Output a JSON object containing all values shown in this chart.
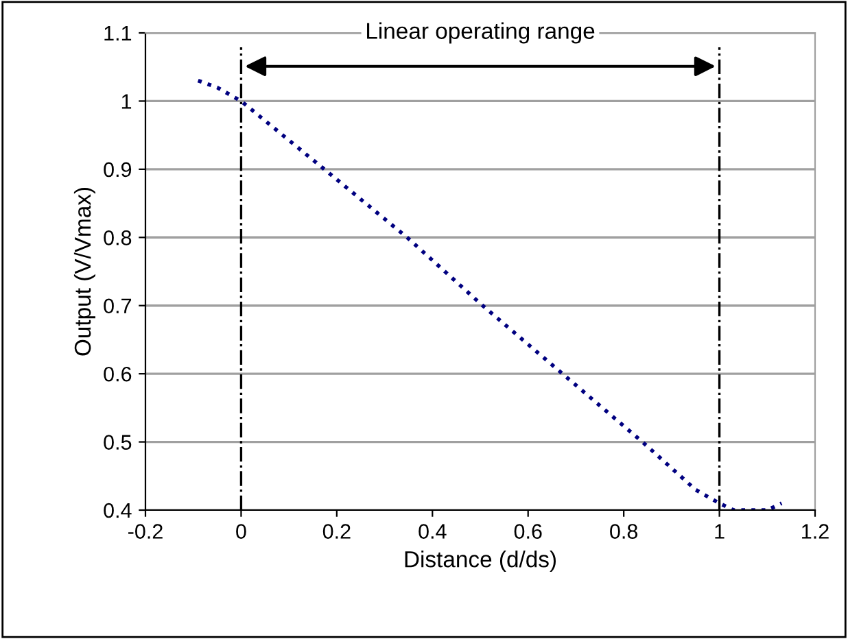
{
  "chart_data": {
    "type": "line",
    "xlabel": "Distance (d/ds)",
    "ylabel": "Output (V/Vmax)",
    "series": [
      {
        "color": "#000080",
        "x": [
          -0.09,
          -0.05,
          0,
          0.174,
          0.347,
          0.505,
          0.672,
          0.839,
          0.95,
          1.0,
          1.03,
          1.1,
          1.13
        ],
        "values": [
          1.03,
          1.02,
          1.0,
          0.9,
          0.8,
          0.7,
          0.6,
          0.5,
          0.43,
          0.41,
          0.4,
          0.4,
          0.41
        ]
      }
    ],
    "xlim": [
      -0.2,
      1.2
    ],
    "xticks": [
      -0.2,
      0,
      0.2,
      0.4,
      0.6,
      0.8,
      1,
      1.2
    ],
    "ylim": [
      0.4,
      1.1
    ],
    "yticks": [
      0.4,
      0.5,
      0.6,
      0.7,
      0.8,
      0.9,
      1,
      1.1
    ],
    "grid": "y",
    "line_style": "dotted",
    "marker": "none",
    "ref_lines": [
      {
        "axis": "x",
        "value": 0,
        "color": "#000000",
        "line_style": "dashdot"
      },
      {
        "axis": "x",
        "value": 1,
        "color": "#000000",
        "line_style": "dashdot"
      }
    ],
    "annotations": [
      "Linear operating range"
    ]
  }
}
